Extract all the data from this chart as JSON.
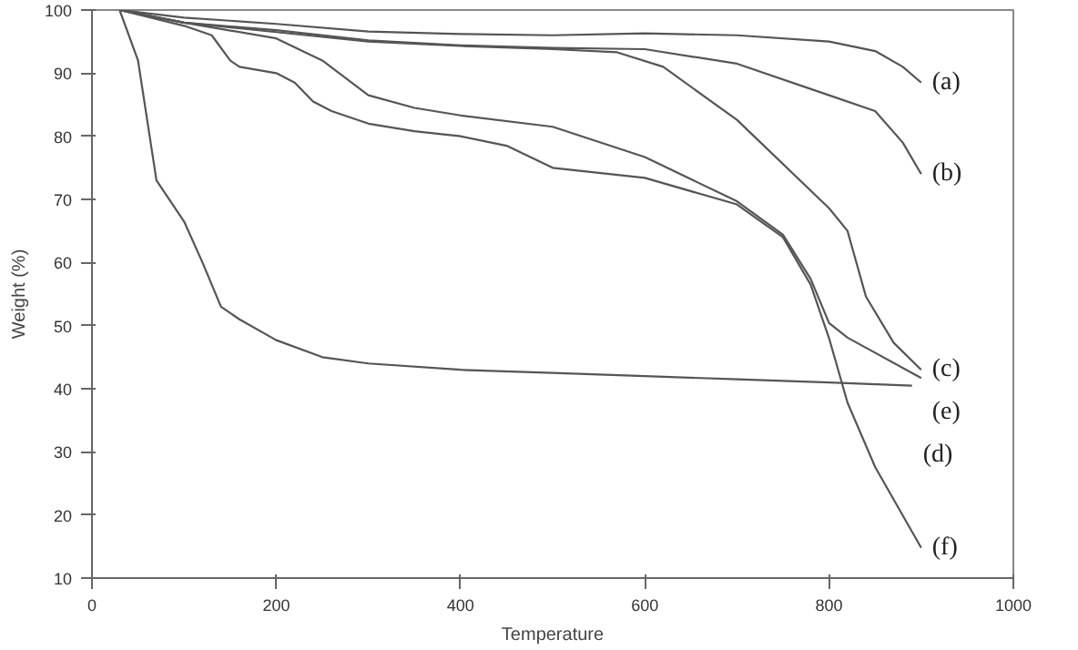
{
  "chart_data": {
    "type": "line",
    "xlabel": "Temperature",
    "ylabel": "Weight (%)",
    "xlim": [
      0,
      1000
    ],
    "ylim": [
      10,
      100
    ],
    "xticks": [
      0,
      200,
      400,
      600,
      800,
      1000
    ],
    "yticks": [
      10,
      20,
      30,
      40,
      50,
      60,
      70,
      80,
      90,
      100
    ],
    "grid": false,
    "marker": "none",
    "line_style": "solid",
    "series": [
      {
        "name": "(a)",
        "color": "#555555",
        "x": [
          30,
          100,
          200,
          300,
          400,
          500,
          600,
          700,
          800,
          850,
          880,
          900
        ],
        "values": [
          100,
          98.8,
          97.8,
          96.6,
          96.2,
          96,
          96.3,
          96,
          95,
          93.5,
          91,
          88.5
        ]
      },
      {
        "name": "(b)",
        "color": "#555555",
        "x": [
          30,
          100,
          200,
          300,
          400,
          500,
          600,
          700,
          800,
          850,
          880,
          900
        ],
        "values": [
          100,
          98,
          96.8,
          95.2,
          94.4,
          94,
          93.8,
          91.5,
          86.5,
          84,
          79,
          74
        ]
      },
      {
        "name": "(c)",
        "color": "#555555",
        "x": [
          30,
          100,
          200,
          300,
          400,
          500,
          570,
          620,
          700,
          800,
          820,
          840,
          870,
          900
        ],
        "values": [
          100,
          98,
          96.5,
          95,
          94.3,
          93.8,
          93.3,
          91,
          82.6,
          68.6,
          65,
          54.6,
          47.3,
          43
        ]
      },
      {
        "name": "(e)",
        "color": "#555555",
        "x": [
          30,
          100,
          200,
          250,
          300,
          350,
          400,
          500,
          600,
          700,
          750,
          780,
          800,
          820,
          900
        ],
        "values": [
          100,
          98,
          95.5,
          92,
          86.5,
          84.5,
          83.3,
          81.5,
          76.7,
          69.7,
          64.4,
          57.4,
          50.4,
          48.1,
          41.7
        ]
      },
      {
        "name": "(f)",
        "color": "#555555",
        "x": [
          30,
          100,
          130,
          150,
          160,
          200,
          220,
          240,
          260,
          300,
          350,
          400,
          450,
          500,
          600,
          700,
          750,
          780,
          800,
          820,
          850,
          900
        ],
        "values": [
          100,
          97.5,
          96,
          92,
          91,
          90,
          88.5,
          85.5,
          84,
          82,
          80.8,
          80,
          78.5,
          75,
          73.4,
          69.2,
          64,
          56.5,
          48,
          37.8,
          27.6,
          14.8
        ]
      },
      {
        "name": "(d)",
        "color": "#555555",
        "x": [
          30,
          50,
          70,
          100,
          120,
          140,
          160,
          200,
          250,
          300,
          400,
          500,
          600,
          700,
          800,
          890
        ],
        "values": [
          100,
          92,
          73,
          66.5,
          60,
          53,
          51,
          47.7,
          45,
          44,
          43,
          42.5,
          42,
          41.5,
          41,
          40.5
        ]
      }
    ]
  }
}
